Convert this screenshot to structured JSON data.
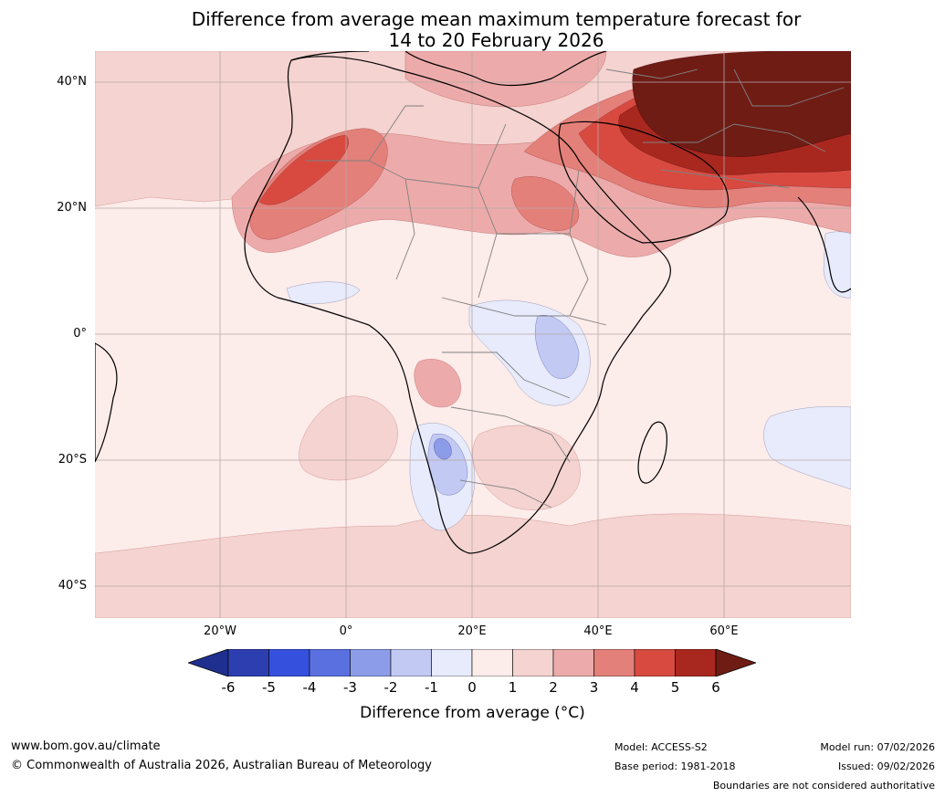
{
  "title_line1": "Difference from average mean maximum temperature forecast for",
  "title_line2": "14 to 20 February 2026",
  "axes": {
    "lat_labels": [
      "40°N",
      "20°N",
      "0°",
      "20°S",
      "40°S"
    ],
    "lon_labels": [
      "20°W",
      "0°",
      "20°E",
      "40°E",
      "60°E"
    ]
  },
  "colorbar": {
    "ticks": [
      "-6",
      "-5",
      "-4",
      "-3",
      "-2",
      "-1",
      "0",
      "1",
      "2",
      "3",
      "4",
      "5",
      "6"
    ],
    "colors": [
      "#1f2f8f",
      "#2d3fb0",
      "#3550dd",
      "#5a70e0",
      "#8c9ce8",
      "#c2c9f2",
      "#e7ebfb",
      "#fcecea",
      "#f4d3d0",
      "#ecabaa",
      "#e4807a",
      "#d84a40",
      "#a8281f",
      "#6e1c14"
    ],
    "title": "Difference from average (°C)"
  },
  "footer": {
    "website": "www.bom.gov.au/climate",
    "copyright": "© Commonwealth of Australia 2026, Australian Bureau of Meteorology",
    "model": "Model: ACCESS-S2",
    "base_period": "Base period: 1981-2018",
    "model_run": "Model run: 07/02/2026",
    "issued": "Issued: 09/02/2026",
    "disclaimer": "Boundaries are not considered authoritative"
  }
}
